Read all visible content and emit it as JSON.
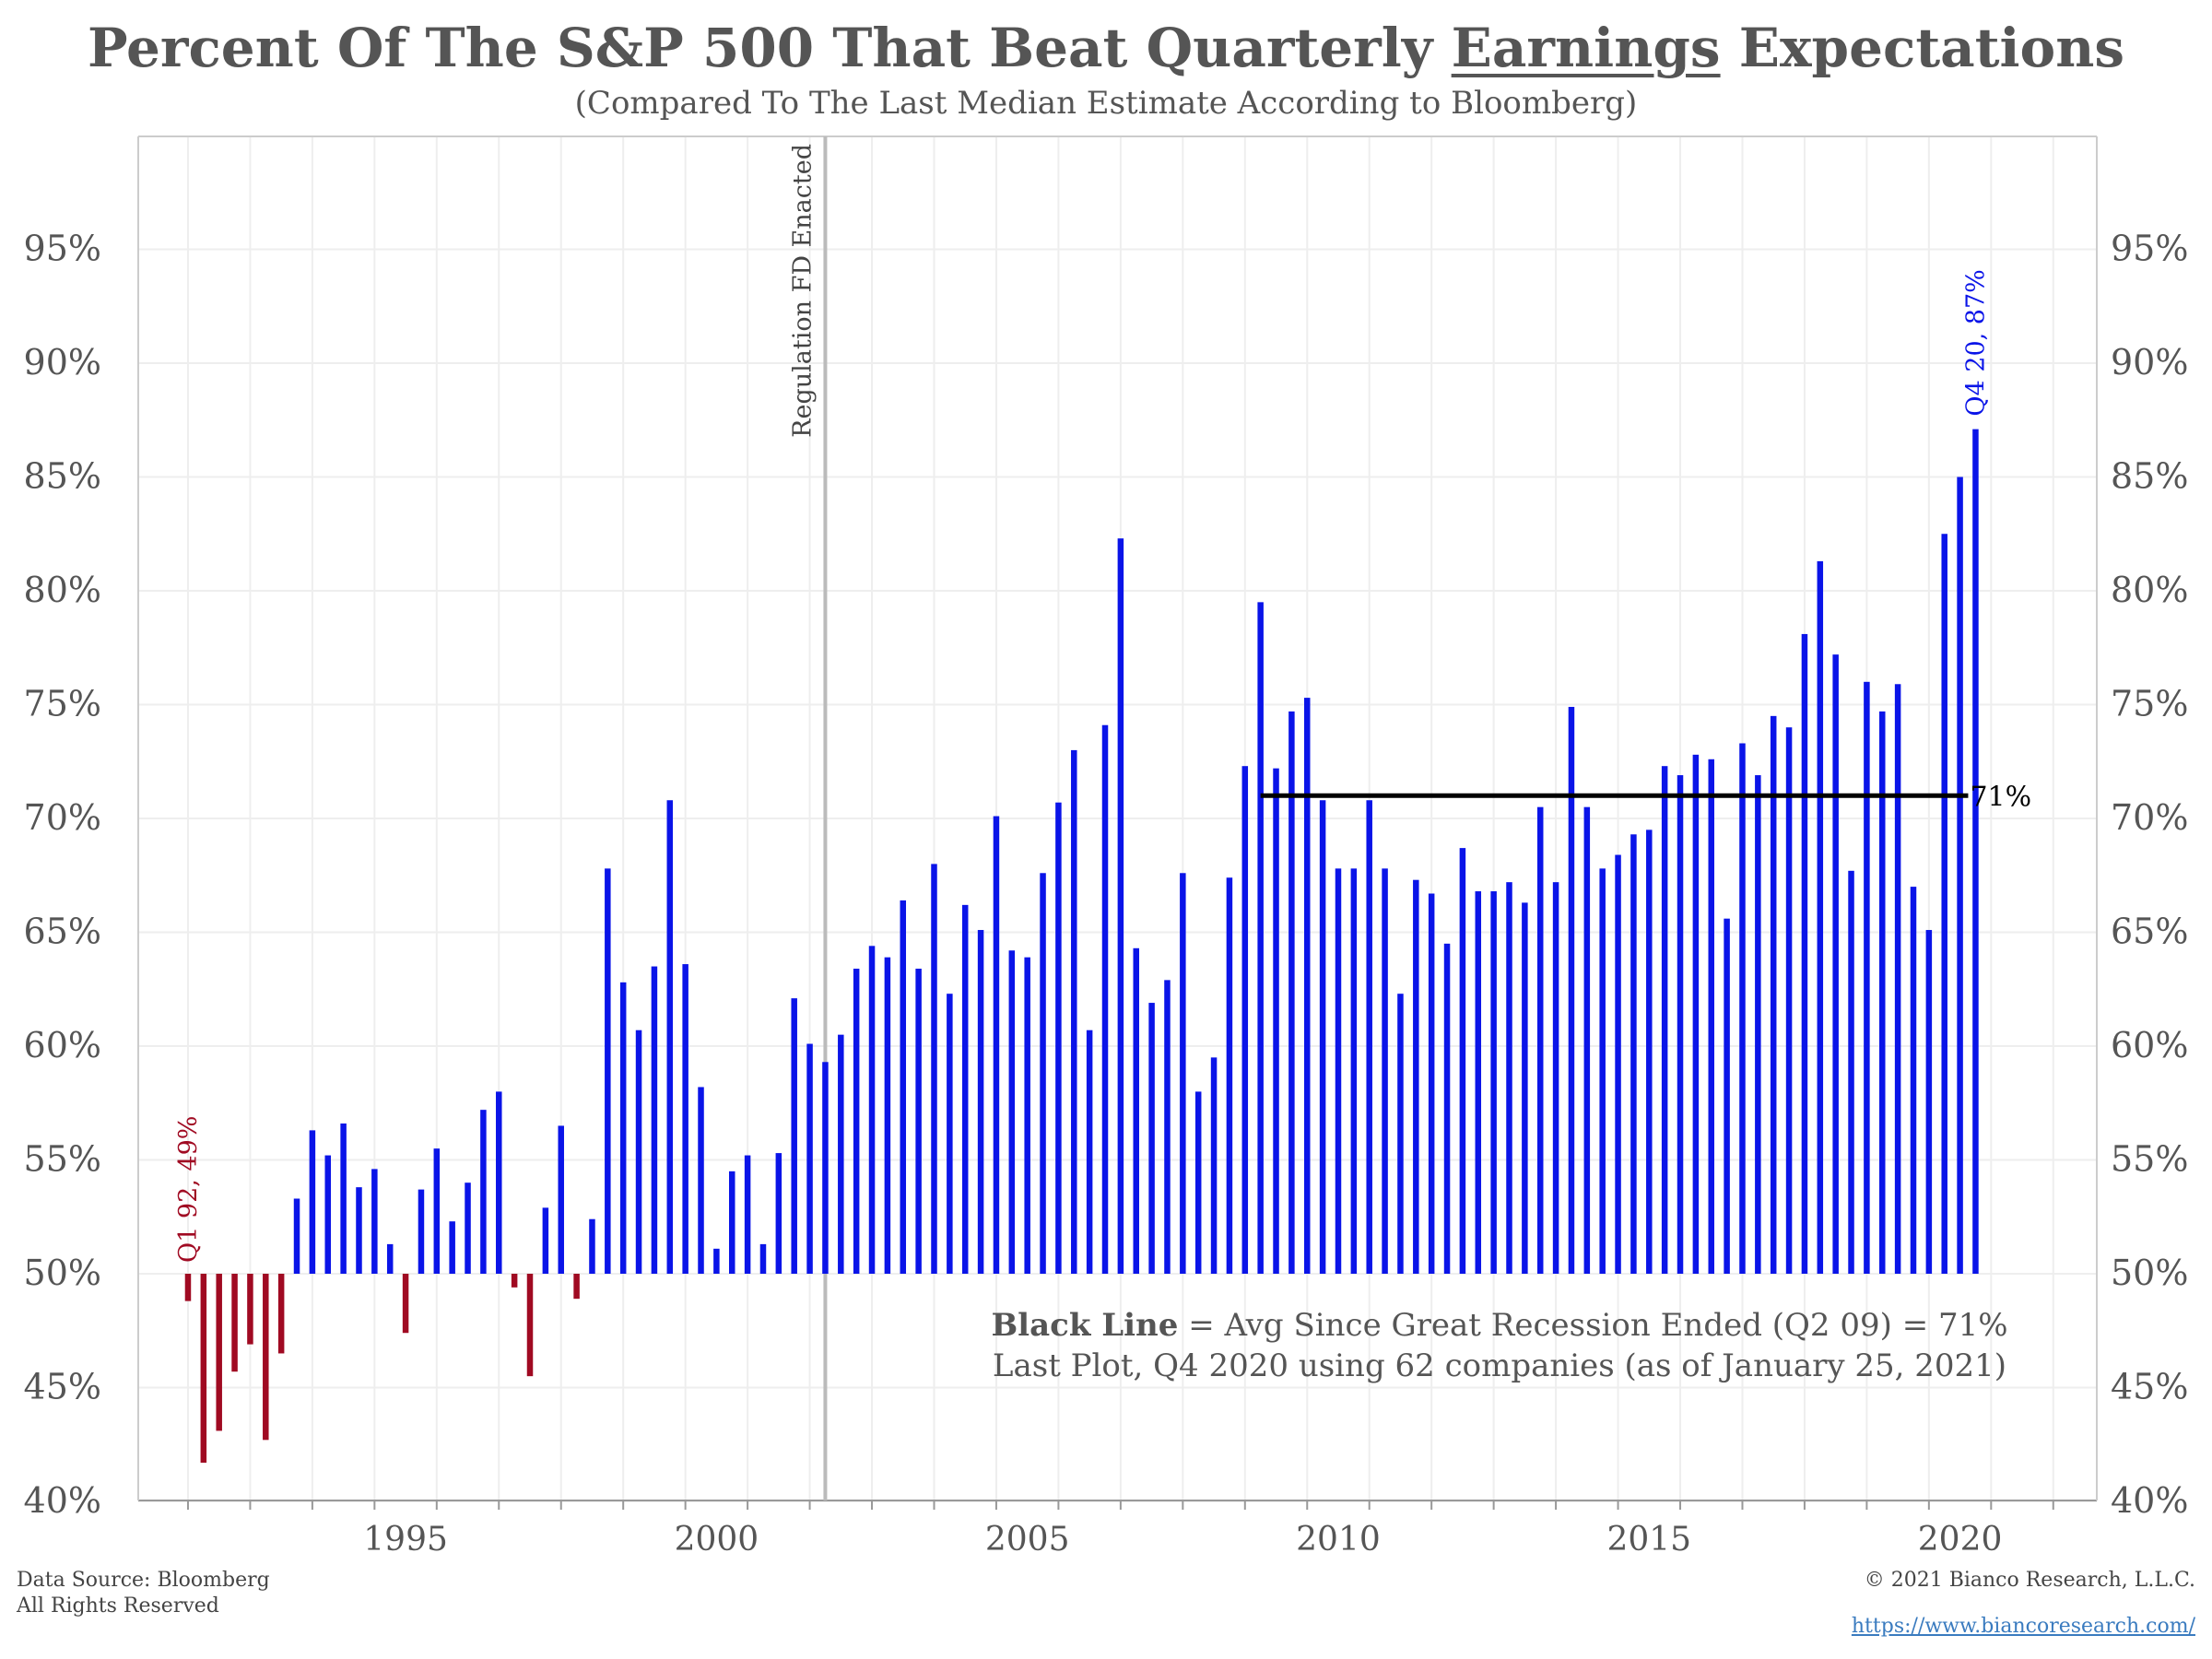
{
  "title_parts": {
    "before": "Percent Of The S&P 500 That Beat Quarterly ",
    "underlined": "Earnings",
    "after": " Expectations"
  },
  "subtitle": "(Compared To The Last Median Estimate According to Bloomberg)",
  "footer": {
    "source_line1": "Data Source: Bloomberg",
    "source_line2": "All Rights Reserved",
    "copyright": "© 2021 Bianco Research, L.L.C.",
    "url": "https://www.biancoresearch.com/"
  },
  "chart_data": {
    "type": "bar",
    "baseline": 50,
    "ylim": [
      40,
      98
    ],
    "xlim": [
      1991.2,
      2022.7
    ],
    "y_ticks": [
      40,
      45,
      50,
      55,
      60,
      65,
      70,
      75,
      80,
      85,
      90,
      95
    ],
    "y_tick_labels": [
      "40%",
      "45%",
      "50%",
      "55%",
      "60%",
      "65%",
      "70%",
      "75%",
      "80%",
      "85%",
      "90%",
      "95%"
    ],
    "x_ticks": [
      1995,
      2000,
      2005,
      2010,
      2015,
      2020
    ],
    "x_tick_labels": [
      "1995",
      "2000",
      "2005",
      "2010",
      "2015",
      "2020"
    ],
    "grid": true,
    "colors": {
      "above": "#0a14e8",
      "below": "#a00a22",
      "avg_line": "#000000",
      "reg_line": "#bbbbbb",
      "grid": "#eeeeee"
    },
    "series": [
      {
        "start_year": 1992,
        "start_quarter": 1,
        "values": [
          48.8,
          41.7,
          43.1,
          45.7,
          46.9,
          42.7,
          46.5,
          53.3,
          56.3,
          55.2,
          56.6,
          53.8,
          54.6,
          51.3,
          47.4,
          53.7,
          55.5,
          52.3,
          54.0,
          57.2,
          58.0,
          49.4,
          45.5,
          52.9,
          56.5,
          48.9,
          52.4,
          67.8,
          62.8,
          60.7,
          63.5,
          70.8,
          63.6,
          58.2,
          51.1,
          54.5,
          55.2,
          51.3,
          55.3,
          62.1,
          60.1,
          59.3,
          60.5,
          63.4,
          64.4,
          63.9,
          66.4,
          63.4,
          68.0,
          62.3,
          66.2,
          65.1,
          70.1,
          64.2,
          63.9,
          67.6,
          70.7,
          73.0,
          60.7,
          74.1,
          82.3,
          64.3,
          61.9,
          62.9,
          67.6,
          58.0,
          59.5,
          67.4,
          72.3,
          79.5,
          72.2,
          74.7,
          75.3,
          70.8,
          67.8,
          67.8,
          70.8,
          67.8,
          62.3,
          67.3,
          66.7,
          64.5,
          68.7,
          66.8,
          66.8,
          67.2,
          66.3,
          70.5,
          67.2,
          74.9,
          70.5,
          67.8,
          68.4,
          69.3,
          69.5,
          72.3,
          71.9,
          72.8,
          72.6,
          65.6,
          73.3,
          71.9,
          74.5,
          74.0,
          78.1,
          81.3,
          77.2,
          67.7,
          76.0,
          74.7,
          75.9,
          67.0,
          65.1,
          82.5,
          85.0,
          87.1
        ]
      }
    ],
    "avg_line": {
      "value": 71,
      "start": "Q2 09",
      "label": "71%"
    },
    "regulation_line": {
      "year": 2002.25,
      "label": "Regulation FD Enacted"
    },
    "annotations": {
      "first": {
        "label": "Q1 92, 49%"
      },
      "last": {
        "label": "Q4 20, 87%"
      }
    },
    "note": {
      "bold": "Black Line",
      "line1_rest": " = Avg Since Great Recession Ended (Q2 09) = 71%",
      "line2": "Last Plot, Q4 2020 using 62 companies (as of January 25, 2021)"
    }
  }
}
